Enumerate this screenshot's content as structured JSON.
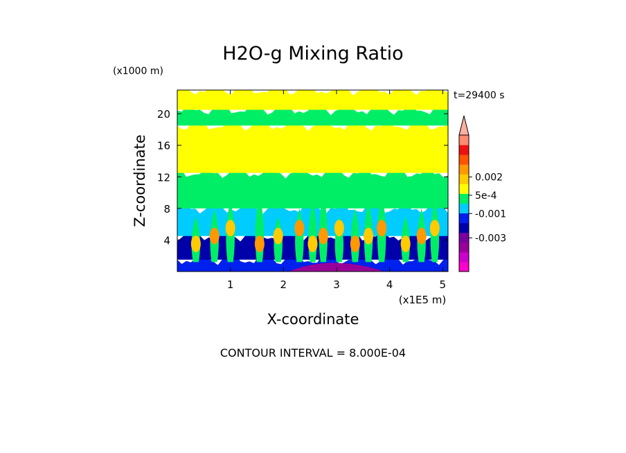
{
  "chart_data": {
    "type": "heatmap",
    "title": "H2O-g Mixing Ratio",
    "time_label": "t=29400 s",
    "y_scale_label": "(x1000 m)",
    "x_scale_label": "(x1E5 m)",
    "xlabel": "X-coordinate",
    "ylabel": "Z-coordinate",
    "xlim": [
      0,
      5.1
    ],
    "ylim": [
      0,
      23
    ],
    "x_ticks": [
      1,
      2,
      3,
      4,
      5
    ],
    "y_ticks": [
      4,
      8,
      12,
      16,
      20
    ],
    "x_tick_labels": [
      "1",
      "2",
      "3",
      "4",
      "5"
    ],
    "y_tick_labels": [
      "4",
      "8",
      "12",
      "16",
      "20"
    ],
    "contour_interval_text": "CONTOUR INTERVAL = 8.000E-04",
    "colorbar": {
      "levels_bottom_to_top": [
        {
          "color": "#ff00cc"
        },
        {
          "color": "#cc00cc"
        },
        {
          "color": "#990099"
        },
        {
          "color": "#7a00a0"
        },
        {
          "color": "#0000aa"
        },
        {
          "color": "#0020ee"
        },
        {
          "color": "#00ccff"
        },
        {
          "color": "#00ee66"
        },
        {
          "color": "#ffff00"
        },
        {
          "color": "#ffcc00"
        },
        {
          "color": "#ff9900"
        },
        {
          "color": "#ff5500"
        },
        {
          "color": "#ee1111"
        },
        {
          "color": "#ff8a70"
        }
      ],
      "labels": [
        {
          "text": "0.002",
          "value": 0.002
        },
        {
          "text": "5e-4",
          "value": 0.0005
        },
        {
          "text": "-0.001",
          "value": -0.001
        },
        {
          "text": "-0.003",
          "value": -0.003
        }
      ]
    },
    "field_bands": [
      {
        "zmin": 0,
        "zmax": 1.5,
        "color": "#0020ee"
      },
      {
        "zmin": 1.5,
        "zmax": 4.5,
        "color": "#0000aa"
      },
      {
        "zmin": 4.5,
        "zmax": 8.0,
        "color": "#00ccff"
      },
      {
        "zmin": 8.0,
        "zmax": 12.5,
        "color": "#00ee66"
      },
      {
        "zmin": 12.5,
        "zmax": 18.5,
        "color": "#ffff00"
      },
      {
        "zmin": 18.5,
        "zmax": 20.5,
        "color": "#00ee66"
      },
      {
        "zmin": 20.5,
        "zmax": 23,
        "color": "#ffff00"
      }
    ]
  }
}
